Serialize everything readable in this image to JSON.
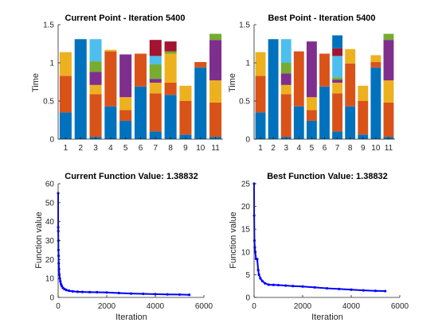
{
  "chart_data": [
    {
      "type": "bar",
      "stacked": true,
      "title": "Current Point - Iteration 5400",
      "xlabel": "",
      "ylabel": "Time",
      "ylim": [
        0,
        1.5
      ],
      "yticks": [
        "0",
        "0.5",
        "1",
        "1.5"
      ],
      "categories": [
        "1",
        "2",
        "3",
        "4",
        "5",
        "6",
        "7",
        "8",
        "9",
        "10",
        "11"
      ],
      "series": [
        {
          "color": "#0072BD",
          "values": [
            0.35,
            1.31,
            0.03,
            0.43,
            0.24,
            0.69,
            0.1,
            0.58,
            0.06,
            0.94,
            0.03
          ]
        },
        {
          "color": "#D95319",
          "values": [
            0.48,
            0,
            0.56,
            0.72,
            0.14,
            0.43,
            0.5,
            0.16,
            0.44,
            0.07,
            0.45
          ]
        },
        {
          "color": "#EDB120",
          "values": [
            0.31,
            0,
            0.12,
            0.02,
            0.17,
            0,
            0.14,
            0.38,
            0.2,
            0,
            0.29
          ]
        },
        {
          "color": "#7E2F8E",
          "values": [
            0,
            0,
            0.17,
            0,
            0.56,
            0,
            0.05,
            0,
            0,
            0,
            0.53
          ]
        },
        {
          "color": "#77AC30",
          "values": [
            0,
            0,
            0.14,
            0,
            0,
            0,
            0.19,
            0.03,
            0,
            0,
            0.08
          ]
        },
        {
          "color": "#4DBEEE",
          "values": [
            0,
            0,
            0.29,
            0,
            0,
            0,
            0.11,
            0,
            0,
            0,
            0
          ]
        },
        {
          "color": "#A2142F",
          "values": [
            0,
            0,
            0,
            0,
            0,
            0,
            0.21,
            0.13,
            0,
            0,
            0
          ]
        }
      ]
    },
    {
      "type": "bar",
      "stacked": true,
      "title": "Best Point - Iteration 5400",
      "xlabel": "",
      "ylabel": "Time",
      "ylim": [
        0,
        1.5
      ],
      "yticks": [
        "0",
        "0.5",
        "1",
        "1.5"
      ],
      "categories": [
        "1",
        "2",
        "3",
        "4",
        "5",
        "6",
        "7",
        "8",
        "9",
        "10",
        "11"
      ],
      "series": [
        {
          "color": "#0072BD",
          "values": [
            0.35,
            1.31,
            0.03,
            0.43,
            0.24,
            0.69,
            0.1,
            0.43,
            0.06,
            0.94,
            0.03
          ]
        },
        {
          "color": "#D95319",
          "values": [
            0.48,
            0,
            0.56,
            0.72,
            0.14,
            0.43,
            0.5,
            0.56,
            0.44,
            0.07,
            0.45
          ]
        },
        {
          "color": "#EDB120",
          "values": [
            0.31,
            0,
            0.12,
            0,
            0.17,
            0,
            0.14,
            0.19,
            0.2,
            0.09,
            0.29
          ]
        },
        {
          "color": "#7E2F8E",
          "values": [
            0,
            0,
            0.15,
            0,
            0.73,
            0,
            0.04,
            0,
            0,
            0,
            0.53
          ]
        },
        {
          "color": "#77AC30",
          "values": [
            0,
            0,
            0.14,
            0,
            0,
            0,
            0.03,
            0,
            0,
            0,
            0.08
          ]
        },
        {
          "color": "#4DBEEE",
          "values": [
            0,
            0,
            0.31,
            0,
            0,
            0,
            0.28,
            0,
            0,
            0,
            0
          ]
        },
        {
          "color": "#A2142F",
          "values": [
            0,
            0,
            0,
            0,
            0,
            0,
            0.1,
            0,
            0,
            0,
            0
          ]
        },
        {
          "color": "#0072BD",
          "values": [
            0,
            0,
            0,
            0,
            0,
            0,
            0.17,
            0,
            0,
            0,
            0
          ]
        }
      ]
    },
    {
      "type": "scatter",
      "title": "Current Function Value: 1.38832",
      "xlabel": "Iteration",
      "ylabel": "Function value",
      "xlim": [
        0,
        6000
      ],
      "ylim": [
        0,
        60
      ],
      "xticks": [
        "0",
        "2000",
        "4000",
        "6000"
      ],
      "yticks": [
        "0",
        "10",
        "20",
        "30",
        "40",
        "50",
        "60"
      ],
      "color": "#0000FF",
      "points": [
        [
          1,
          55
        ],
        [
          3,
          37
        ],
        [
          5,
          35
        ],
        [
          8,
          30
        ],
        [
          12,
          25
        ],
        [
          18,
          22
        ],
        [
          25,
          18
        ],
        [
          35,
          15
        ],
        [
          50,
          12
        ],
        [
          70,
          10
        ],
        [
          90,
          8.5
        ],
        [
          120,
          7
        ],
        [
          150,
          6
        ],
        [
          200,
          5
        ],
        [
          260,
          4.4
        ],
        [
          340,
          3.9
        ],
        [
          450,
          3.5
        ],
        [
          600,
          3.2
        ],
        [
          800,
          3.0
        ],
        [
          1000,
          2.9
        ],
        [
          1300,
          2.8
        ],
        [
          1600,
          2.75
        ],
        [
          2000,
          2.6
        ],
        [
          2500,
          2.3
        ],
        [
          3000,
          2.05
        ],
        [
          3500,
          1.9
        ],
        [
          4000,
          1.75
        ],
        [
          4500,
          1.6
        ],
        [
          5000,
          1.5
        ],
        [
          5400,
          1.39
        ]
      ]
    },
    {
      "type": "scatter",
      "title": "Best Function Value: 1.38832",
      "xlabel": "Iteration",
      "ylabel": "Function value",
      "xlim": [
        0,
        6000
      ],
      "ylim": [
        0,
        25
      ],
      "xticks": [
        "0",
        "2000",
        "4000",
        "6000"
      ],
      "yticks": [
        "0",
        "5",
        "10",
        "15",
        "20",
        "25"
      ],
      "color": "#0000FF",
      "points": [
        [
          1,
          25
        ],
        [
          5,
          18
        ],
        [
          15,
          12.5
        ],
        [
          30,
          11
        ],
        [
          50,
          10
        ],
        [
          80,
          8.5
        ],
        [
          130,
          8.4
        ],
        [
          170,
          6
        ],
        [
          200,
          5
        ],
        [
          260,
          4.2
        ],
        [
          340,
          3.6
        ],
        [
          450,
          3.1
        ],
        [
          600,
          2.8
        ],
        [
          800,
          2.75
        ],
        [
          1000,
          2.7
        ],
        [
          1300,
          2.6
        ],
        [
          1600,
          2.5
        ],
        [
          2000,
          2.4
        ],
        [
          2500,
          2.2
        ],
        [
          3000,
          2.0
        ],
        [
          3500,
          1.85
        ],
        [
          4000,
          1.7
        ],
        [
          4500,
          1.55
        ],
        [
          5000,
          1.45
        ],
        [
          5400,
          1.39
        ]
      ]
    }
  ]
}
